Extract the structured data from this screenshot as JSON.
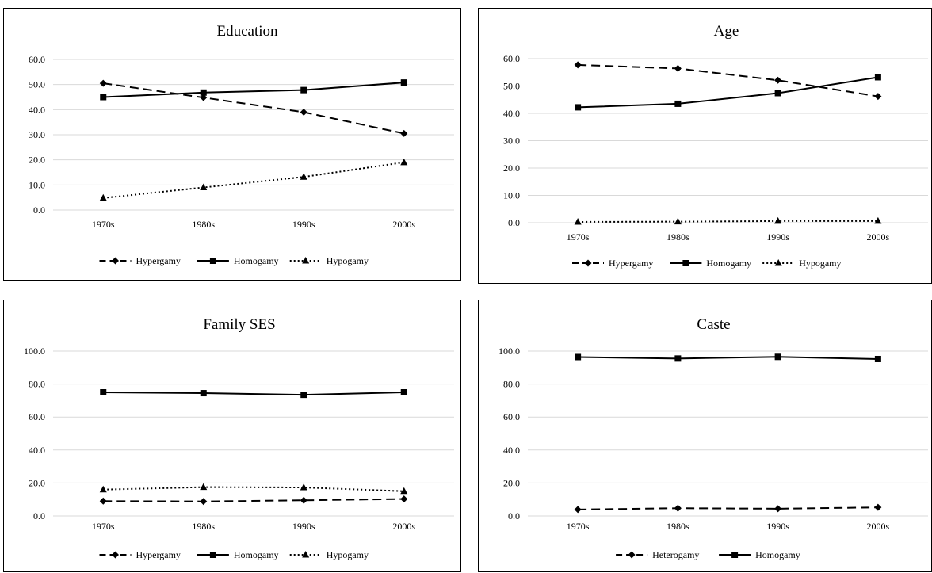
{
  "chart_data": [
    {
      "type": "line",
      "title": "Education",
      "categories": [
        "1970s",
        "1980s",
        "1990s",
        "2000s"
      ],
      "ylim": [
        0,
        60
      ],
      "yticks": [
        "0.0",
        "10.0",
        "20.0",
        "30.0",
        "40.0",
        "50.0",
        "60.0"
      ],
      "grid": true,
      "legend_position": "bottom",
      "series": [
        {
          "name": "Hypergamy",
          "values": [
            50.5,
            44.8,
            39.0,
            30.5
          ],
          "style": "dashed",
          "marker": "diamond"
        },
        {
          "name": "Homogamy",
          "values": [
            45.0,
            46.8,
            47.8,
            50.8
          ],
          "style": "solid",
          "marker": "square"
        },
        {
          "name": "Hypogamy",
          "values": [
            4.8,
            9.0,
            13.2,
            19.0
          ],
          "style": "dotted",
          "marker": "triangle"
        }
      ]
    },
    {
      "type": "line",
      "title": "Age",
      "categories": [
        "1970s",
        "1980s",
        "1990s",
        "2000s"
      ],
      "ylim": [
        0,
        60
      ],
      "yticks": [
        "0.0",
        "10.0",
        "20.0",
        "30.0",
        "40.0",
        "50.0",
        "60.0"
      ],
      "grid": true,
      "legend_position": "bottom",
      "series": [
        {
          "name": "Hypergamy",
          "values": [
            57.7,
            56.4,
            52.1,
            46.2
          ],
          "style": "dashed",
          "marker": "diamond"
        },
        {
          "name": "Homogamy",
          "values": [
            42.2,
            43.5,
            47.4,
            53.2
          ],
          "style": "solid",
          "marker": "square"
        },
        {
          "name": "Hypogamy",
          "values": [
            0.3,
            0.4,
            0.6,
            0.6
          ],
          "style": "dotted",
          "marker": "triangle"
        }
      ]
    },
    {
      "type": "line",
      "title": "Family SES",
      "categories": [
        "1970s",
        "1980s",
        "1990s",
        "2000s"
      ],
      "ylim": [
        0,
        100
      ],
      "yticks": [
        "0.0",
        "20.0",
        "40.0",
        "60.0",
        "80.0",
        "100.0"
      ],
      "grid": true,
      "legend_position": "bottom",
      "series": [
        {
          "name": "Hypergamy",
          "values": [
            9.0,
            8.8,
            9.5,
            10.3
          ],
          "style": "dashed",
          "marker": "diamond"
        },
        {
          "name": "Homogamy",
          "values": [
            75.0,
            74.5,
            73.5,
            75.0
          ],
          "style": "solid",
          "marker": "square"
        },
        {
          "name": "Hypogamy",
          "values": [
            16.0,
            17.5,
            17.3,
            15.0
          ],
          "style": "dotted",
          "marker": "triangle"
        }
      ]
    },
    {
      "type": "line",
      "title": "Caste",
      "categories": [
        "1970s",
        "1980s",
        "1990s",
        "2000s"
      ],
      "ylim": [
        0,
        100
      ],
      "yticks": [
        "0.0",
        "20.0",
        "40.0",
        "60.0",
        "80.0",
        "100.0"
      ],
      "grid": true,
      "legend_position": "bottom",
      "series": [
        {
          "name": "Heterogamy",
          "values": [
            3.9,
            4.7,
            4.4,
            5.2
          ],
          "style": "dashed",
          "marker": "diamond"
        },
        {
          "name": "Homogamy",
          "values": [
            96.4,
            95.5,
            96.5,
            95.2
          ],
          "style": "solid",
          "marker": "square"
        }
      ]
    }
  ]
}
